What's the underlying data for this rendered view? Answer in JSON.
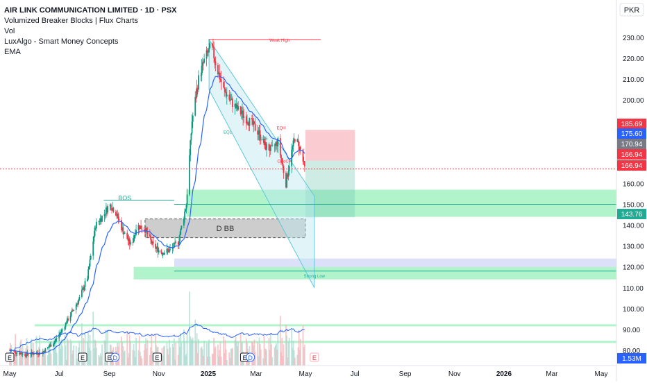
{
  "legend": {
    "title": "AIR LINK COMMUNICATION LIMITED · 1D · PSX",
    "indicator_1": "Volumized Breaker Blocks | Flux Charts",
    "indicator_2": "Vol",
    "indicator_3": "LuxAlgo - Smart Money Concepts",
    "indicator_4": "EMA"
  },
  "currency": "PKR",
  "chart_data": {
    "type": "candlestick",
    "symbol": "AIR LINK COMMUNICATION LIMITED",
    "timeframe": "1D",
    "exchange": "PSX",
    "ylim": [
      75,
      237
    ],
    "y_ticks": [
      80,
      90,
      100,
      110,
      120,
      130,
      140,
      150,
      160,
      170,
      180,
      190,
      200,
      210,
      220,
      230
    ],
    "x_ticks": [
      "2024-05-01",
      "2024-07-01",
      "2024-09-01",
      "2024-11-01",
      "2025-01-01",
      "2025-03-01",
      "2025-05-01",
      "2025-07-01",
      "2025-09-01",
      "2025-11-01",
      "2026-01-01",
      "2026-03-01",
      "2026-05-01"
    ],
    "x_tick_labels": [
      "May",
      "Jul",
      "Sep",
      "Nov",
      "2025",
      "Mar",
      "May",
      "Jul",
      "Sep",
      "Nov",
      "2026",
      "Mar",
      "May"
    ],
    "price_path": [
      [
        "2024-05-01",
        80
      ],
      [
        "2024-05-20",
        78
      ],
      [
        "2024-06-10",
        79
      ],
      [
        "2024-06-25",
        84
      ],
      [
        "2024-07-05",
        90
      ],
      [
        "2024-07-15",
        97
      ],
      [
        "2024-07-25",
        104
      ],
      [
        "2024-08-05",
        115
      ],
      [
        "2024-08-15",
        140
      ],
      [
        "2024-08-25",
        145
      ],
      [
        "2024-09-01",
        150
      ],
      [
        "2024-09-08",
        147
      ],
      [
        "2024-09-18",
        137
      ],
      [
        "2024-09-28",
        130
      ],
      [
        "2024-10-05",
        140
      ],
      [
        "2024-10-15",
        138
      ],
      [
        "2024-10-25",
        130
      ],
      [
        "2024-11-05",
        127
      ],
      [
        "2024-11-15",
        128
      ],
      [
        "2024-11-25",
        132
      ],
      [
        "2024-12-05",
        150
      ],
      [
        "2024-12-12",
        190
      ],
      [
        "2024-12-20",
        210
      ],
      [
        "2024-12-28",
        220
      ],
      [
        "2025-01-05",
        226
      ],
      [
        "2025-01-12",
        215
      ],
      [
        "2025-01-20",
        205
      ],
      [
        "2025-01-28",
        200
      ],
      [
        "2025-02-05",
        196
      ],
      [
        "2025-02-15",
        192
      ],
      [
        "2025-02-25",
        188
      ],
      [
        "2025-03-05",
        184
      ],
      [
        "2025-03-12",
        178
      ],
      [
        "2025-03-20",
        176
      ],
      [
        "2025-03-28",
        180
      ],
      [
        "2025-04-03",
        168
      ],
      [
        "2025-04-07",
        160
      ],
      [
        "2025-04-12",
        172
      ],
      [
        "2025-04-18",
        182
      ],
      [
        "2025-04-25",
        176
      ],
      [
        "2025-04-30",
        166.94
      ]
    ],
    "horizontal_lines": [
      {
        "value": 166.94,
        "color": "#f23645",
        "style": "dotted"
      },
      {
        "value": 150,
        "color": "#22ab94",
        "style": "solid"
      },
      {
        "value": 118,
        "color": "#22ab94",
        "style": "solid"
      }
    ],
    "zones": [
      {
        "type": "bullish_breaker",
        "from": "2024-12-05",
        "to": "2026-06-30",
        "low": 144,
        "high": 157,
        "color": "#7dedaa"
      },
      {
        "type": "bullish_breaker",
        "from": "2024-10-01",
        "to": "2026-06-30",
        "low": 114,
        "high": 120,
        "color": "#7dedaa"
      },
      {
        "type": "bullish_breaker",
        "from": "2024-06-01",
        "to": "2026-06-30",
        "low": 91.5,
        "high": 92.5,
        "color": "#7dedaa"
      },
      {
        "type": "bullish_breaker",
        "from": "2024-06-01",
        "to": "2026-06-30",
        "low": 83.5,
        "high": 84.5,
        "color": "#7dedaa"
      },
      {
        "type": "liquidity",
        "from": "2024-11-20",
        "to": "2026-06-30",
        "low": 120,
        "high": 124,
        "color": "#c5cbf5"
      },
      {
        "type": "bearish_breaker",
        "label": "D BB",
        "from": "2024-10-15",
        "to": "2025-05-01",
        "low": 134,
        "high": 143,
        "color": "#c4c4c4"
      }
    ],
    "structure_labels": [
      {
        "text": "BOS",
        "date": "2024-09-20",
        "value": 152
      },
      {
        "text": "Weak High",
        "date": "2025-03-30",
        "value": 228
      },
      {
        "text": "Strong Low",
        "date": "2025-05-12",
        "value": 115
      },
      {
        "text": "EQH",
        "date": "2025-04-01",
        "value": 186
      },
      {
        "text": "EQL",
        "date": "2025-01-25",
        "value": 184
      },
      {
        "text": "BOS",
        "date": "2025-03-10",
        "value": 181
      },
      {
        "text": "CHoCH",
        "date": "2025-04-05",
        "value": 170
      }
    ],
    "price_labels": [
      {
        "value": 185.69,
        "text": "185.69",
        "color": "#f23645"
      },
      {
        "value": 175.6,
        "text": "175.60",
        "color": "#2962ff"
      },
      {
        "value": 170.94,
        "text": "170.94",
        "color": "#787b86"
      },
      {
        "value": 166.94,
        "text": "166.94",
        "color": "#f23645"
      },
      {
        "value": 166.94,
        "text": "166.94",
        "color": "#f23645"
      },
      {
        "value": 143.76,
        "text": "143.76",
        "color": "#22ab94"
      }
    ],
    "volume_label": "1.53M",
    "event_markers": [
      {
        "date": "2024-05-01",
        "text": "E"
      },
      {
        "date": "2024-07-30",
        "text": "E"
      },
      {
        "date": "2024-09-01",
        "text": "E"
      },
      {
        "date": "2024-09-08",
        "text": "D"
      },
      {
        "date": "2024-10-30",
        "text": "E"
      },
      {
        "date": "2025-02-15",
        "text": "E"
      },
      {
        "date": "2025-02-22",
        "text": "D"
      },
      {
        "date": "2025-05-12",
        "text": "E"
      }
    ]
  }
}
